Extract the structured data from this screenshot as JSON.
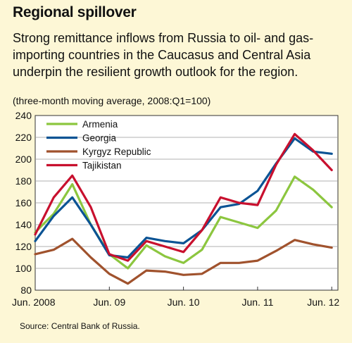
{
  "title": "Regional spillover",
  "subtitle": "Strong remittance inflows from Russia to oil- and gas-importing countries in the Caucasus and Central Asia underpin the resilient growth outlook for the region.",
  "note": "(three-month moving average, 2008:Q1=100)",
  "source": "Source: Central Bank of Russia.",
  "chart_data": {
    "type": "line",
    "title": "Regional spillover",
    "ylim": [
      80,
      240
    ],
    "yticks": [
      80,
      100,
      120,
      140,
      160,
      180,
      200,
      220,
      240
    ],
    "xticks": [
      {
        "label": "Jun. 2008",
        "x": 0
      },
      {
        "label": "Jun. 09",
        "x": 12
      },
      {
        "label": "Jun. 10",
        "x": 24
      },
      {
        "label": "Jun. 11",
        "x": 36
      },
      {
        "label": "Jun. 12",
        "x": 48
      }
    ],
    "x": [
      0,
      3,
      6,
      9,
      12,
      15,
      18,
      21,
      24,
      27,
      30,
      33,
      36,
      39,
      42,
      45,
      48
    ],
    "grid": true,
    "legend_position": "top-left",
    "series": [
      {
        "name": "Armenia",
        "color": "#8cc63f",
        "values": [
          133,
          150,
          177,
          140,
          113,
          100,
          121,
          111,
          105,
          117,
          147,
          142,
          137,
          153,
          184,
          172,
          156
        ]
      },
      {
        "name": "Georgia",
        "color": "#0b5394",
        "values": [
          125,
          148,
          165,
          140,
          112,
          110,
          128,
          125,
          123,
          135,
          156,
          159,
          171,
          196,
          219,
          207,
          205
        ]
      },
      {
        "name": "Kyrgyz Republic",
        "color": "#a0522d",
        "values": [
          113,
          117,
          127,
          110,
          95,
          86,
          98,
          97,
          94,
          95,
          105,
          105,
          107,
          116,
          126,
          122,
          119
        ]
      },
      {
        "name": "Tajikistan",
        "color": "#c8102e",
        "values": [
          131,
          165,
          185,
          156,
          113,
          107,
          125,
          120,
          115,
          135,
          165,
          160,
          158,
          195,
          223,
          208,
          190
        ]
      }
    ]
  }
}
